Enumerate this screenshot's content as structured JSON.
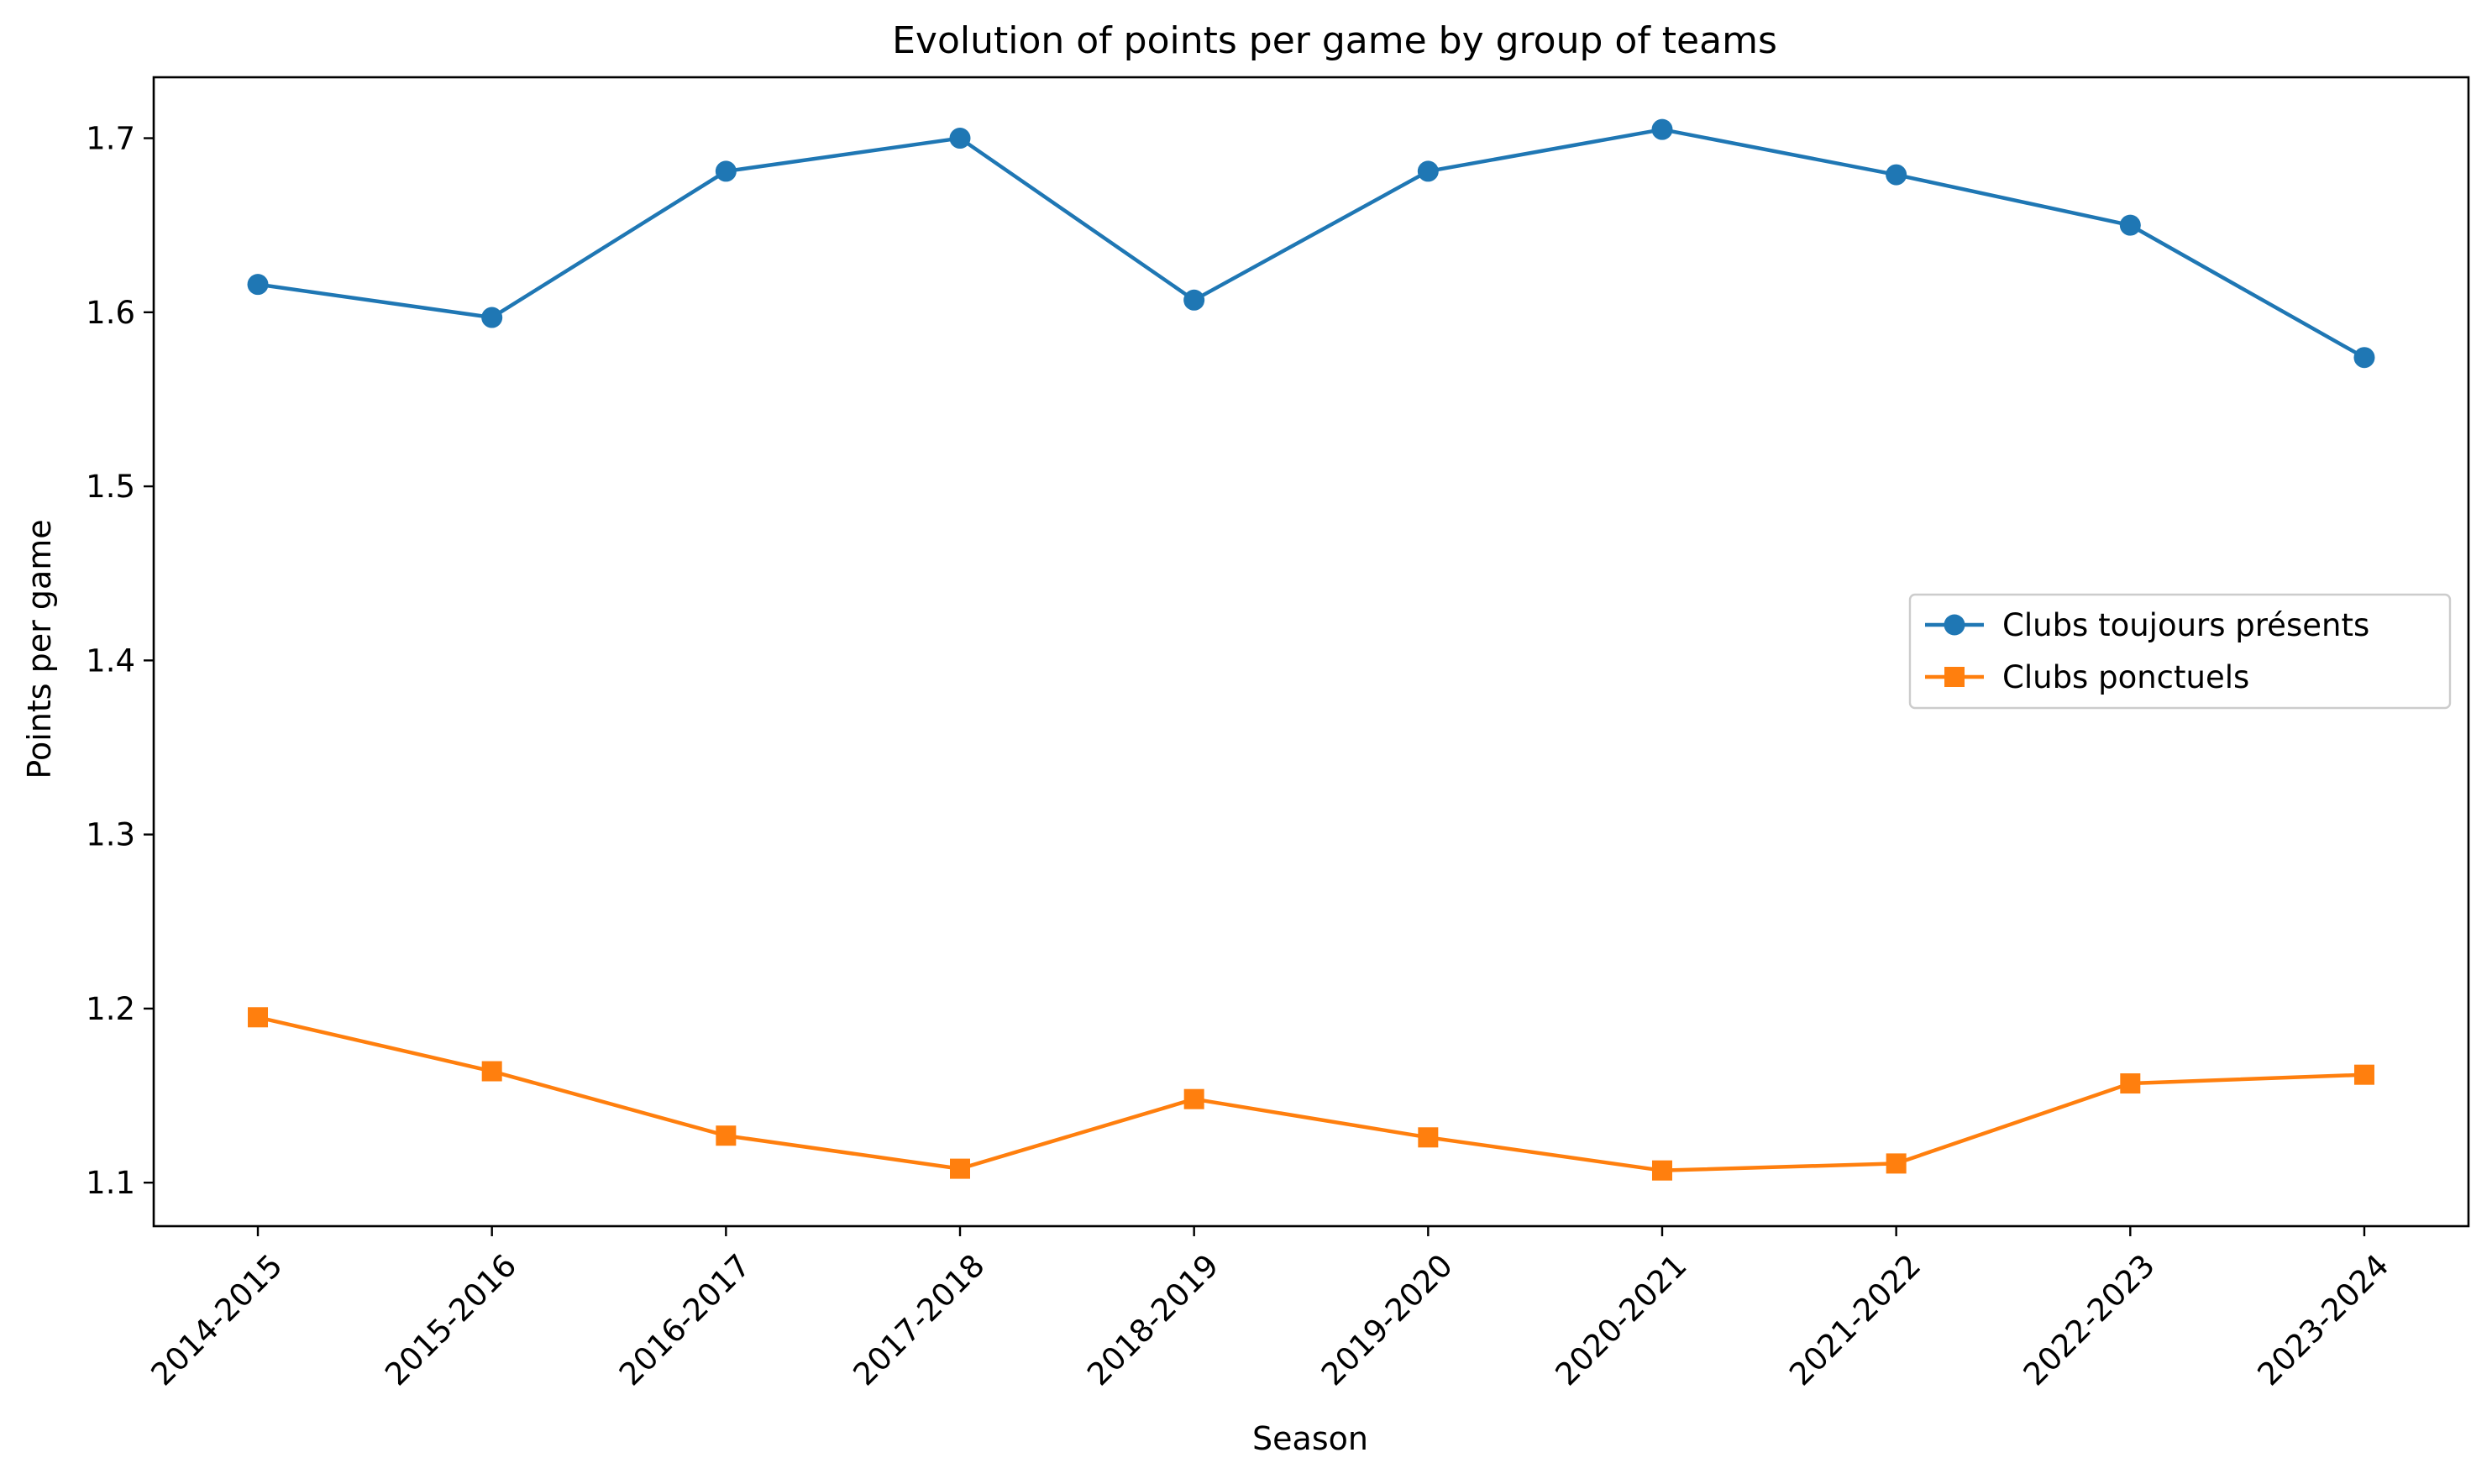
{
  "chart_data": {
    "type": "line",
    "title": "Evolution of points per game by group of teams",
    "xlabel": "Season",
    "ylabel": "Points per game",
    "categories": [
      "2014-2015",
      "2015-2016",
      "2016-2017",
      "2017-2018",
      "2018-2019",
      "2019-2020",
      "2020-2021",
      "2021-2022",
      "2022-2023",
      "2023-2024"
    ],
    "ylim": [
      1.075,
      1.735
    ],
    "yticks": [
      1.1,
      1.2,
      1.3,
      1.4,
      1.5,
      1.6,
      1.7
    ],
    "ytick_labels": [
      "1.1",
      "1.2",
      "1.3",
      "1.4",
      "1.5",
      "1.6",
      "1.7"
    ],
    "grid": false,
    "legend_position": "center-right",
    "series": [
      {
        "name": "Clubs toujours présents",
        "color": "#1f77b4",
        "marker": "circle",
        "values": [
          1.616,
          1.597,
          1.681,
          1.7,
          1.607,
          1.681,
          1.705,
          1.679,
          1.65,
          1.574
        ]
      },
      {
        "name": "Clubs ponctuels",
        "color": "#ff7f0e",
        "marker": "square",
        "values": [
          1.195,
          1.164,
          1.127,
          1.108,
          1.148,
          1.126,
          1.107,
          1.111,
          1.157,
          1.162
        ]
      }
    ]
  }
}
